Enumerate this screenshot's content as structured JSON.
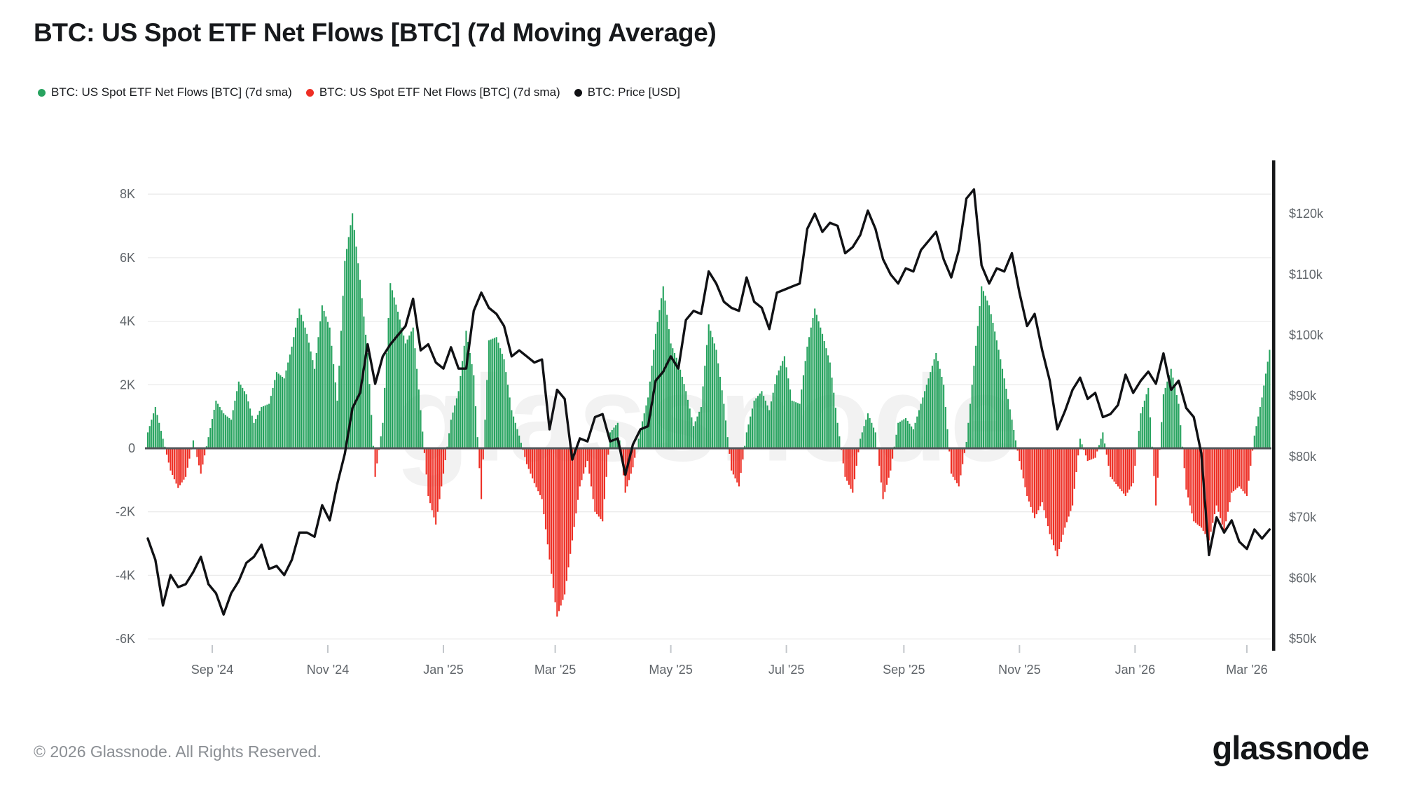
{
  "header": {
    "title": "BTC: US Spot ETF Net Flows [BTC] (7d Moving Average)"
  },
  "legend": [
    {
      "label": "BTC: US Spot ETF Net Flows [BTC] (7d sma)",
      "color": "#27a35f"
    },
    {
      "label": "BTC: US Spot ETF Net Flows [BTC] (7d sma)",
      "color": "#ee2e24"
    },
    {
      "label": "BTC: Price [USD]",
      "color": "#101114"
    }
  ],
  "watermark": "glassnode",
  "footer": {
    "copyright": "© 2026 Glassnode. All Rights Reserved.",
    "logo_text": "glassnode"
  },
  "chart_data": {
    "type": "bar+line",
    "title": "BTC: US Spot ETF Net Flows [BTC] (7d Moving Average)",
    "grid": true,
    "legend_position": "top-left",
    "start_date": "2024-07-29",
    "end_date": "2026-03-13",
    "sample_interval_days": 4,
    "series": [
      {
        "name": "BTC: US Spot ETF Net Flows [BTC] (7d sma)",
        "type": "bar",
        "axis": "left",
        "unit": "BTC",
        "color_positive": "#27a35f",
        "color_negative": "#ee2e24"
      },
      {
        "name": "BTC: Price [USD]",
        "type": "line",
        "axis": "right",
        "unit": "USD",
        "color": "#101114"
      }
    ],
    "flows_btc_7d_sma": [
      500,
      1300,
      300,
      -700,
      -1250,
      -900,
      250,
      -800,
      350,
      1500,
      1100,
      900,
      2100,
      1700,
      800,
      1300,
      1400,
      2400,
      2200,
      3200,
      4400,
      3600,
      2500,
      4500,
      3800,
      1500,
      5900,
      7400,
      5300,
      3000,
      -900,
      800,
      5200,
      4300,
      3300,
      3800,
      1200,
      -1500,
      -2400,
      -800,
      900,
      1800,
      3700,
      2300,
      -1600,
      3400,
      3500,
      2800,
      1200,
      400,
      -500,
      -1100,
      -1600,
      -3500,
      -5300,
      -4600,
      -2900,
      -1200,
      -400,
      -2000,
      -2300,
      500,
      800,
      -1400,
      -600,
      600,
      1600,
      3600,
      5100,
      3300,
      2700,
      1800,
      700,
      1300,
      3900,
      3100,
      1400,
      -700,
      -1200,
      500,
      1500,
      1800,
      1200,
      2300,
      2900,
      1500,
      1400,
      3200,
      4400,
      3600,
      2700,
      800,
      -900,
      -1400,
      300,
      1100,
      500,
      -1600,
      -700,
      800,
      950,
      600,
      1400,
      2200,
      3000,
      2000,
      -800,
      -1200,
      200,
      2600,
      5100,
      4500,
      3400,
      2200,
      900,
      -400,
      -1500,
      -2200,
      -1700,
      -2700,
      -3400,
      -2500,
      -1800,
      300,
      -400,
      -300,
      500,
      -900,
      -1200,
      -1500,
      -1100,
      1100,
      1900,
      -1800,
      1700,
      2500,
      1400,
      -1300,
      -2300,
      -2500,
      -2900,
      -1800,
      -2600,
      -1400,
      -1200,
      -1500,
      400,
      1600,
      3100
    ],
    "price_usd_thousands": [
      66.5,
      63.0,
      55.5,
      60.5,
      58.5,
      59.0,
      61.0,
      63.5,
      59.0,
      57.5,
      54.0,
      57.5,
      59.5,
      62.5,
      63.5,
      65.5,
      61.5,
      62.0,
      60.5,
      63.0,
      67.5,
      67.5,
      66.8,
      72.0,
      69.5,
      75.5,
      80.5,
      88.0,
      90.5,
      98.5,
      92.0,
      96.5,
      98.5,
      100.0,
      101.5,
      106.0,
      97.5,
      98.5,
      95.5,
      94.5,
      98.0,
      94.5,
      94.5,
      104.0,
      107.0,
      104.5,
      103.5,
      101.5,
      96.5,
      97.5,
      96.5,
      95.5,
      96.0,
      84.5,
      91.0,
      89.5,
      79.5,
      83.0,
      82.5,
      86.5,
      87.0,
      82.5,
      83.0,
      77.0,
      82.0,
      84.5,
      85.0,
      92.5,
      94.0,
      96.5,
      94.5,
      102.5,
      104.0,
      103.5,
      110.5,
      108.5,
      105.5,
      104.5,
      104.0,
      109.5,
      105.5,
      104.5,
      101.0,
      107.0,
      107.5,
      108.0,
      108.5,
      117.5,
      120.0,
      117.0,
      118.5,
      118.0,
      113.5,
      114.5,
      116.5,
      120.5,
      117.5,
      112.5,
      110.0,
      108.5,
      111.0,
      110.5,
      114.0,
      115.5,
      117.0,
      112.5,
      109.5,
      114.0,
      122.5,
      124.0,
      111.5,
      108.5,
      111.0,
      110.5,
      113.5,
      107.0,
      101.5,
      103.5,
      97.5,
      92.5,
      84.5,
      87.5,
      91.0,
      93.0,
      89.5,
      90.5,
      86.5,
      87.0,
      88.5,
      93.5,
      90.5,
      92.5,
      94.0,
      92.0,
      97.0,
      91.0,
      92.5,
      88.0,
      86.5,
      80.5,
      63.8,
      70.0,
      67.5,
      69.5,
      66.0,
      64.8,
      68.0,
      66.5,
      68.0
    ],
    "x_ticks": [
      {
        "label": "Sep '24",
        "day": 34
      },
      {
        "label": "Nov '24",
        "day": 95
      },
      {
        "label": "Jan '25",
        "day": 156
      },
      {
        "label": "Mar '25",
        "day": 215
      },
      {
        "label": "May '25",
        "day": 276
      },
      {
        "label": "Jul '25",
        "day": 337
      },
      {
        "label": "Sep '25",
        "day": 399
      },
      {
        "label": "Nov '25",
        "day": 460
      },
      {
        "label": "Jan '26",
        "day": 521
      },
      {
        "label": "Mar '26",
        "day": 580
      }
    ],
    "left_axis": {
      "tick_labels": [
        "8K",
        "6K",
        "4K",
        "2K",
        "0",
        "-2K",
        "-4K",
        "-6K"
      ],
      "tick_values": [
        8000,
        6000,
        4000,
        2000,
        0,
        -2000,
        -4000,
        -6000
      ],
      "range": [
        -6000,
        8900
      ]
    },
    "right_axis": {
      "tick_labels": [
        "$120k",
        "$110k",
        "$100k",
        "$90k",
        "$80k",
        "$70k",
        "$60k",
        "$50k"
      ],
      "tick_values_usd_k": [
        120,
        110,
        100,
        90,
        80,
        70,
        60,
        50
      ],
      "range_usd_k": [
        50,
        128
      ]
    },
    "colors": {
      "positive_flow": "#27a35f",
      "negative_flow": "#ee2e24",
      "price_line": "#101114",
      "zero_line": "#53565a",
      "gridline": "#ebebeb",
      "axis_text": "#5f6469",
      "watermark": "#000000",
      "background": "#ffffff"
    }
  }
}
